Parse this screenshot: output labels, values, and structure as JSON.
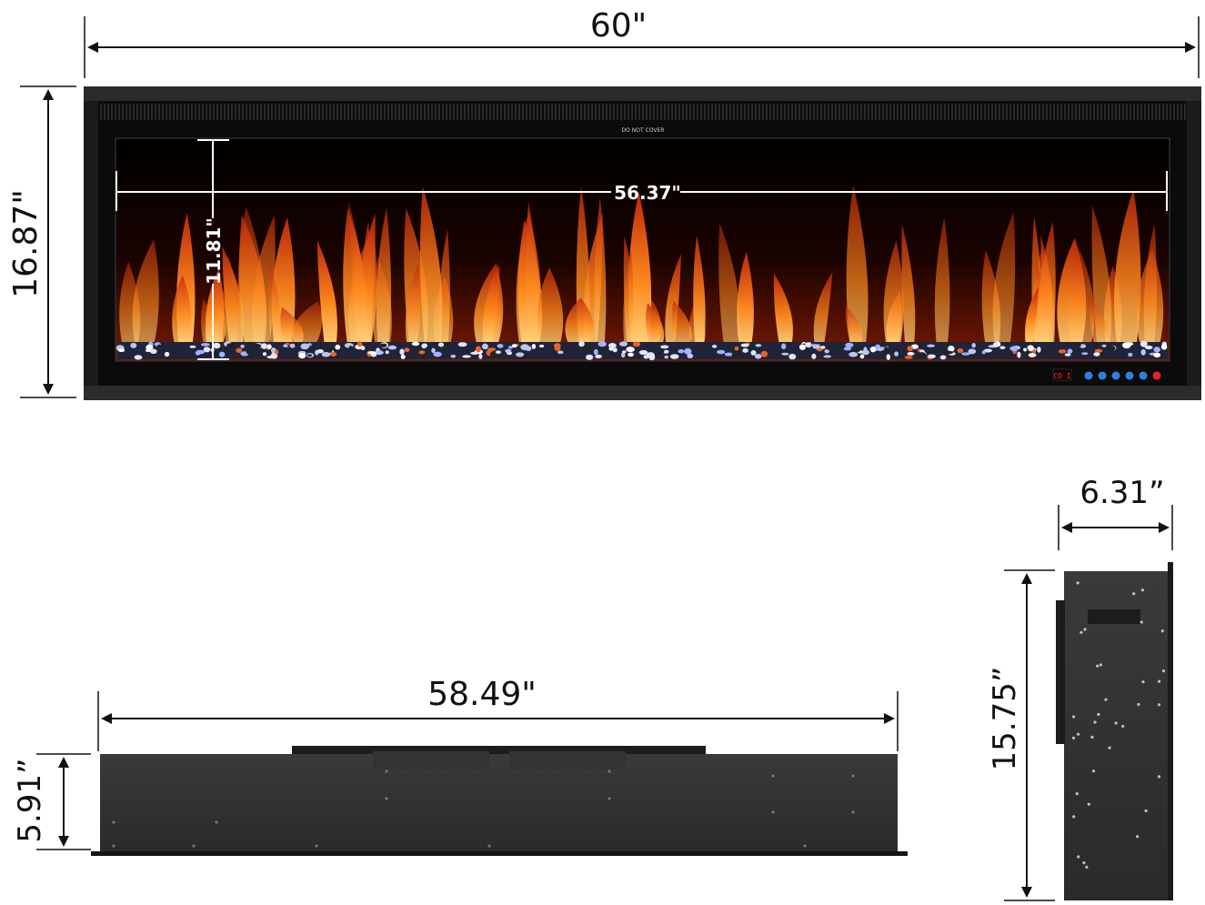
{
  "dimensions": {
    "overall_width": "60\"",
    "overall_height": "16.87\"",
    "viewing_width": "56.37\"",
    "viewing_height": "11.81\"",
    "top_depth_width": "58.49\"",
    "top_depth_height": "5.91”",
    "side_depth": "6.31”",
    "side_height": "15.75”"
  },
  "fireplace": {
    "warning_label": "DO NOT COVER",
    "display_readout": "CO I",
    "control_buttons": [
      "button-1",
      "button-2",
      "button-3",
      "button-4",
      "button-5"
    ],
    "power_button": "power-button"
  },
  "colors": {
    "frame": "#1b1b1b",
    "flame_core": "#ffb347",
    "flame_outer": "#e8430e",
    "control_blue": "#2f7fe0",
    "power_red": "#e0262b",
    "display_red": "#ff4040"
  }
}
